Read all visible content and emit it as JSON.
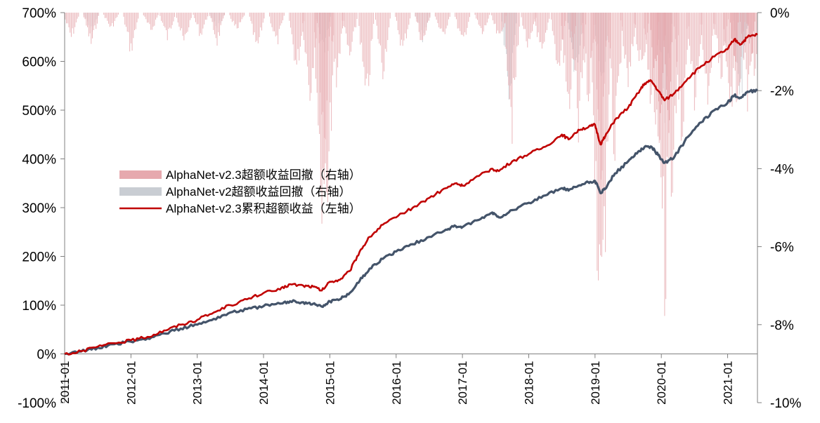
{
  "chart_data": {
    "type": "line",
    "title": "",
    "colors": {
      "v23_drawdown": "#e6a9ae",
      "v2_drawdown": "#c9cdd3",
      "v23_cumulative": "#c00000",
      "v2_cumulative": "#44546a"
    },
    "left_axis": {
      "ylim": [
        -100,
        700
      ],
      "ticks": [
        700,
        600,
        500,
        400,
        300,
        200,
        100,
        0,
        -100
      ],
      "tick_labels": [
        "700%",
        "600%",
        "500%",
        "400%",
        "300%",
        "200%",
        "100%",
        "0%",
        "-100%"
      ]
    },
    "right_axis": {
      "ylim": [
        -10,
        0
      ],
      "ticks": [
        0,
        -2,
        -4,
        -6,
        -8,
        -10
      ],
      "tick_labels": [
        "0%",
        "-2%",
        "-4%",
        "-6%",
        "-8%",
        "-10%"
      ]
    },
    "x_axis": {
      "xlim": [
        2011.0,
        2021.45
      ],
      "ticks": [
        2011,
        2012,
        2013,
        2014,
        2015,
        2016,
        2017,
        2018,
        2019,
        2020,
        2021
      ],
      "tick_labels": [
        "2011-01",
        "2012-01",
        "2013-01",
        "2014-01",
        "2015-01",
        "2016-01",
        "2017-01",
        "2018-01",
        "2019-01",
        "2020-01",
        "2021-01"
      ]
    },
    "legend": {
      "position": "center-left",
      "entries": [
        "AlphaNet-v2.3超额收益回撤（右轴）",
        "AlphaNet-v2超额收益回撤（右轴）",
        "AlphaNet-v2.3累积超额收益（左轴）"
      ]
    },
    "series": [
      {
        "name": "AlphaNet-v2.3累积超额收益（左轴）",
        "axis": "left",
        "style": "line",
        "x": [
          2011.0,
          2011.25,
          2011.5,
          2011.75,
          2012.0,
          2012.25,
          2012.5,
          2012.75,
          2013.0,
          2013.25,
          2013.5,
          2013.75,
          2014.0,
          2014.25,
          2014.4,
          2014.6,
          2014.75,
          2014.88,
          2015.0,
          2015.15,
          2015.3,
          2015.45,
          2015.6,
          2015.8,
          2016.0,
          2016.25,
          2016.5,
          2016.75,
          2016.9,
          2017.0,
          2017.25,
          2017.45,
          2017.55,
          2017.75,
          2018.0,
          2018.25,
          2018.5,
          2018.6,
          2018.75,
          2018.9,
          2019.0,
          2019.08,
          2019.15,
          2019.3,
          2019.5,
          2019.65,
          2019.75,
          2019.85,
          2019.95,
          2020.05,
          2020.2,
          2020.4,
          2020.6,
          2020.8,
          2021.0,
          2021.1,
          2021.2,
          2021.3,
          2021.45
        ],
        "values": [
          0,
          5,
          15,
          22,
          28,
          35,
          48,
          60,
          70,
          85,
          100,
          112,
          125,
          132,
          143,
          140,
          138,
          130,
          148,
          152,
          170,
          210,
          240,
          265,
          280,
          300,
          320,
          340,
          350,
          345,
          365,
          380,
          375,
          395,
          410,
          425,
          450,
          440,
          460,
          465,
          470,
          430,
          445,
          480,
          505,
          535,
          555,
          560,
          540,
          520,
          535,
          565,
          590,
          610,
          625,
          645,
          635,
          650,
          655
        ]
      },
      {
        "name": "AlphaNet-v2累积超额收益（左轴）",
        "axis": "left",
        "style": "line",
        "x": [
          2011.0,
          2011.25,
          2011.5,
          2011.75,
          2012.0,
          2012.25,
          2012.5,
          2012.75,
          2013.0,
          2013.25,
          2013.5,
          2013.75,
          2014.0,
          2014.25,
          2014.4,
          2014.6,
          2014.75,
          2014.88,
          2015.0,
          2015.15,
          2015.3,
          2015.45,
          2015.6,
          2015.8,
          2016.0,
          2016.25,
          2016.5,
          2016.75,
          2016.9,
          2017.0,
          2017.25,
          2017.45,
          2017.55,
          2017.75,
          2018.0,
          2018.25,
          2018.5,
          2018.6,
          2018.75,
          2018.9,
          2019.0,
          2019.08,
          2019.15,
          2019.3,
          2019.5,
          2019.65,
          2019.75,
          2019.85,
          2019.95,
          2020.05,
          2020.2,
          2020.4,
          2020.6,
          2020.8,
          2021.0,
          2021.1,
          2021.2,
          2021.3,
          2021.45
        ],
        "values": [
          0,
          5,
          13,
          20,
          25,
          32,
          42,
          52,
          60,
          72,
          85,
          92,
          98,
          103,
          108,
          106,
          103,
          97,
          108,
          112,
          125,
          150,
          175,
          195,
          210,
          225,
          240,
          255,
          262,
          260,
          275,
          290,
          280,
          295,
          310,
          325,
          340,
          335,
          345,
          352,
          355,
          330,
          338,
          370,
          395,
          415,
          425,
          425,
          408,
          392,
          405,
          445,
          475,
          500,
          515,
          530,
          525,
          538,
          540
        ]
      },
      {
        "name": "AlphaNet-v2.3超额收益回撤（右轴）",
        "axis": "right",
        "style": "bar",
        "x": [
          2011.1,
          2011.4,
          2011.7,
          2012.0,
          2012.3,
          2012.55,
          2012.8,
          2013.05,
          2013.3,
          2013.6,
          2013.9,
          2014.2,
          2014.5,
          2014.7,
          2014.88,
          2014.95,
          2015.1,
          2015.3,
          2015.55,
          2015.8,
          2016.1,
          2016.4,
          2016.7,
          2017.0,
          2017.3,
          2017.55,
          2017.75,
          2018.0,
          2018.2,
          2018.45,
          2018.6,
          2018.75,
          2018.9,
          2019.05,
          2019.12,
          2019.3,
          2019.5,
          2019.7,
          2019.85,
          2019.95,
          2020.05,
          2020.15,
          2020.3,
          2020.5,
          2020.7,
          2020.9,
          2021.05,
          2021.15,
          2021.3,
          2021.4
        ],
        "values": [
          -0.8,
          -1.0,
          -0.5,
          -1.2,
          -0.6,
          -0.8,
          -1.0,
          -0.7,
          -0.9,
          -0.6,
          -1.2,
          -1.0,
          -1.8,
          -2.5,
          -6.0,
          -7.2,
          -2.0,
          -1.5,
          -3.0,
          -1.8,
          -1.2,
          -1.0,
          -0.8,
          -1.0,
          -0.7,
          -0.9,
          -3.5,
          -1.2,
          -1.5,
          -1.8,
          -3.2,
          -3.8,
          -2.5,
          -8.5,
          -8.8,
          -4.5,
          -2.5,
          -2.0,
          -3.0,
          -4.5,
          -8.6,
          -7.0,
          -4.0,
          -3.0,
          -2.5,
          -2.0,
          -3.2,
          -2.8,
          -2.6,
          -2.0
        ]
      },
      {
        "name": "AlphaNet-v2超额收益回撤（右轴）",
        "axis": "right",
        "style": "bar",
        "x": [
          2011.4,
          2013.3,
          2014.9,
          2016.4,
          2017.7,
          2018.7,
          2019.1,
          2020.05,
          2021.2
        ],
        "values": [
          -0.6,
          -0.5,
          -1.2,
          -0.8,
          -2.6,
          -2.0,
          -2.5,
          -3.0,
          -2.6
        ]
      }
    ]
  }
}
